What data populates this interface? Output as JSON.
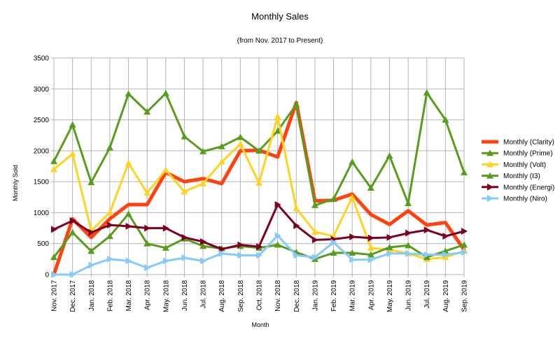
{
  "chart_data": {
    "type": "line",
    "title": "Monthly Sales",
    "subtitle": "(from Nov. 2017 to Present)",
    "xlabel": "Month",
    "ylabel": "Monthly Sold",
    "ylim": [
      0,
      3500
    ],
    "yticks": [
      0,
      500,
      1000,
      1500,
      2000,
      2500,
      3000,
      3500
    ],
    "grid": true,
    "legend_position": "right",
    "categories": [
      "Nov. 2017",
      "Dec. 2017",
      "Jan. 2018",
      "Feb. 2018",
      "Mar. 2018",
      "Apr. 2018",
      "May. 2018",
      "Jun. 2018",
      "Jul. 2018",
      "Aug. 2018",
      "Sep. 2018",
      "Oct. 2018",
      "Nov. 2018",
      "Dec. 2018",
      "Jan. 2019",
      "Feb. 2019",
      "Mar. 2019",
      "Apr. 2019",
      "May. 2019",
      "Jun. 2019",
      "Jul. 2019",
      "Aug. 2019",
      "Sep. 2019"
    ],
    "series": [
      {
        "name": "Monthly (Clarity)",
        "color": "#ff420e",
        "marker": "none",
        "values": [
          0,
          900,
          600,
          900,
          1130,
          1130,
          1650,
          1500,
          1550,
          1470,
          2000,
          2010,
          1900,
          2780,
          1190,
          1200,
          1300,
          970,
          810,
          1030,
          800,
          840,
          400
        ]
      },
      {
        "name": "Monthly (Prime)",
        "color": "#579d1c",
        "marker": "triangle",
        "values": [
          1830,
          2420,
          1490,
          2050,
          2920,
          2630,
          2930,
          2230,
          1990,
          2070,
          2220,
          2000,
          2320,
          2750,
          1120,
          1220,
          1820,
          1400,
          1920,
          1150,
          2940,
          2500,
          1650
        ]
      },
      {
        "name": "Monthly (Volt)",
        "color": "#ffd320",
        "marker": "triangle",
        "values": [
          1700,
          1950,
          710,
          1000,
          1800,
          1320,
          1690,
          1340,
          1470,
          1820,
          2110,
          1480,
          2550,
          1070,
          690,
          620,
          1250,
          430,
          400,
          340,
          250,
          280,
          380
        ]
      },
      {
        "name": "Monthly (I3)",
        "color": "#579d1c",
        "marker": "triangle",
        "values": [
          280,
          680,
          380,
          620,
          980,
          500,
          430,
          580,
          460,
          420,
          460,
          430,
          480,
          360,
          250,
          350,
          350,
          320,
          440,
          470,
          280,
          380,
          480
        ]
      },
      {
        "name": "Monthly (Energi)",
        "color": "#7e0021",
        "marker": "arrow",
        "values": [
          730,
          870,
          680,
          800,
          780,
          750,
          750,
          600,
          530,
          410,
          480,
          450,
          1130,
          790,
          560,
          570,
          610,
          590,
          600,
          670,
          720,
          620,
          700
        ]
      },
      {
        "name": "Monthly (Niro)",
        "color": "#83caff",
        "marker": "arrow",
        "values": [
          0,
          0,
          150,
          250,
          220,
          110,
          220,
          270,
          220,
          340,
          310,
          310,
          630,
          310,
          280,
          520,
          240,
          240,
          340,
          340,
          320,
          320,
          360
        ]
      }
    ]
  }
}
